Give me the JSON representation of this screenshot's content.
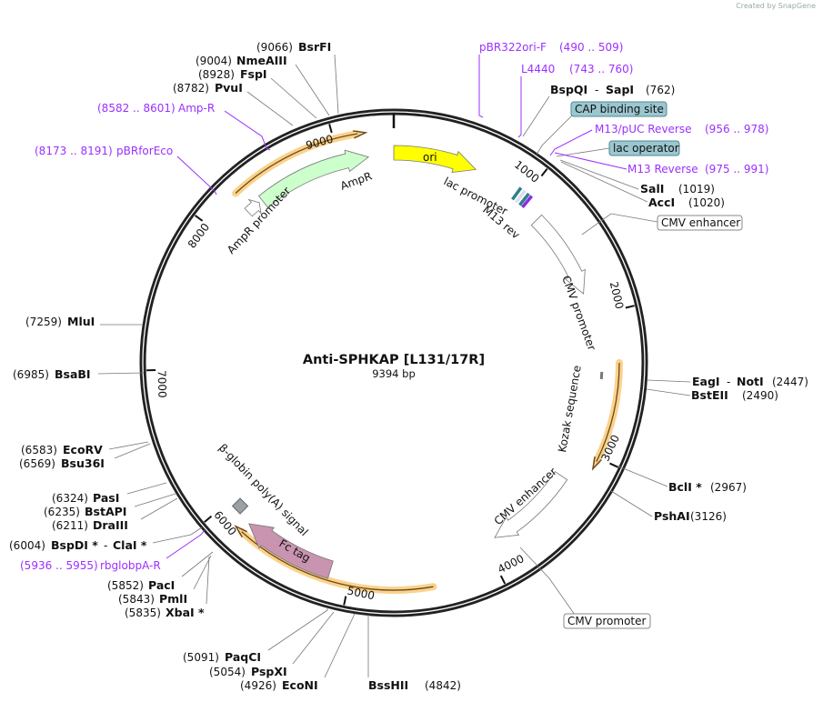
{
  "credit": "Created by SnapGene",
  "plasmid": {
    "name": "Anti-SPHKAP [L131/17R]",
    "length": "9394 bp",
    "length_bp": 9394
  },
  "ticks": [
    "1000",
    "2000",
    "3000",
    "4000",
    "5000",
    "6000",
    "7000",
    "8000",
    "9000"
  ],
  "enzymes": {
    "bsrfi": {
      "pos": "(9066)",
      "name": "BsrFI"
    },
    "nmeaiii": {
      "pos": "(9004)",
      "name": "NmeAIII"
    },
    "fspi": {
      "pos": "(8928)",
      "name": "FspI"
    },
    "pvui": {
      "pos": "(8782)",
      "name": "PvuI"
    },
    "bspqi": {
      "name": "BspQI",
      "sep": "-",
      "name2": "SapI",
      "pos": "(762)"
    },
    "sali": {
      "name": "SalI",
      "pos": "(1019)"
    },
    "acci": {
      "name": "AccI",
      "pos": "(1020)"
    },
    "eagi": {
      "name": "EagI",
      "sep": "-",
      "name2": "NotI",
      "pos": "(2447)"
    },
    "bsteii": {
      "name": "BstEII",
      "pos": "(2490)"
    },
    "bcli": {
      "name": "BclI *",
      "pos": "(2967)"
    },
    "pshai": {
      "name": "PshAI",
      "pos": "(3126)"
    },
    "bsshii": {
      "name": "BssHII",
      "pos": "(4842)"
    },
    "econi": {
      "pos": "(4926)",
      "name": "EcoNI"
    },
    "pspxi": {
      "pos": "(5054)",
      "name": "PspXI"
    },
    "paqci": {
      "pos": "(5091)",
      "name": "PaqCI"
    },
    "xbai": {
      "pos": "(5835)",
      "name": "XbaI *"
    },
    "pmli": {
      "pos": "(5843)",
      "name": "PmlI"
    },
    "paci": {
      "pos": "(5852)",
      "name": "PacI"
    },
    "bspdi": {
      "pos": "(6004)",
      "name": "BspDI *",
      "sep": "-",
      "name2": "ClaI *"
    },
    "draiii": {
      "pos": "(6211)",
      "name": "DraIII"
    },
    "bstapi": {
      "pos": "(6235)",
      "name": "BstAPI"
    },
    "pasi": {
      "pos": "(6324)",
      "name": "PasI"
    },
    "bsu36i": {
      "pos": "(6569)",
      "name": "Bsu36I"
    },
    "ecorv": {
      "pos": "(6583)",
      "name": "EcoRV"
    },
    "bsabi": {
      "pos": "(6985)",
      "name": "BsaBI"
    },
    "mlui": {
      "pos": "(7259)",
      "name": "MluI"
    }
  },
  "primers": {
    "pbr322ori": {
      "name": "pBR322ori-F",
      "range": "(490 .. 509)"
    },
    "l4440": {
      "name": "L4440",
      "range": "(743 .. 760)"
    },
    "m13puc": {
      "name": "M13/pUC Reverse",
      "range": "(956 .. 978)"
    },
    "m13rev": {
      "name": "M13 Reverse",
      "range": "(975 .. 991)"
    },
    "ampr": {
      "range": "(8582 .. 8601)",
      "name": "Amp-R"
    },
    "pbrforeco": {
      "range": "(8173 .. 8191)",
      "name": "pBRforEco"
    },
    "rbglobpa": {
      "range": "(5936 .. 5955)",
      "name": "rbglobpA-R"
    }
  },
  "feature_boxes": {
    "cap": "CAP binding site",
    "lacop": "lac operator",
    "cmv_enh": "CMV enhancer",
    "cmv_prom": "CMV promoter"
  },
  "features": {
    "ori": "ori",
    "ampr": "AmpR",
    "ampr_promoter": "AmpR promoter",
    "lac_promoter": "lac promoter",
    "m13_rev": "M13 rev",
    "cmv_promoter": "CMV promoter",
    "kozak": "Kozak sequence",
    "cmv_enhancer": "CMV enhancer",
    "fc_tag": "Fc tag",
    "bglobin": "β-globin poly(A) signal"
  },
  "colors": {
    "ori": "#ffff00",
    "ampr": "#ccffcc",
    "fc_tag": "#c994b0",
    "primer": "#9b30ff",
    "orf": "#fbd28c",
    "box": "#9cc7d0"
  }
}
